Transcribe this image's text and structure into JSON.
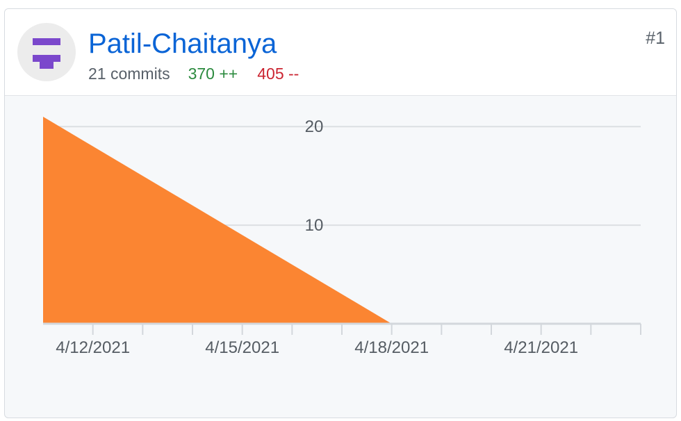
{
  "contributor": {
    "username": "Patil-Chaitanya",
    "commits": "21 commits",
    "additions": "370 ++",
    "deletions": "405 --",
    "rank": "#1",
    "avatar_icon": "identicon-icon",
    "avatar_color": "#7b48cc"
  },
  "chart_data": {
    "type": "area",
    "title": "",
    "xlabel": "",
    "ylabel": "",
    "x": [
      "2021-04-11",
      "2021-04-18"
    ],
    "series": [
      {
        "values": [
          21,
          0
        ],
        "color": "#fb8532"
      }
    ],
    "xlim": [
      "2021-04-11",
      "2021-04-23"
    ],
    "ylim": [
      0,
      21
    ],
    "y_ticks": [
      10,
      20
    ],
    "x_tick_labels": [
      "4/12/2021",
      "4/15/2021",
      "4/18/2021",
      "4/21/2021"
    ],
    "grid": true,
    "legend": "none"
  }
}
